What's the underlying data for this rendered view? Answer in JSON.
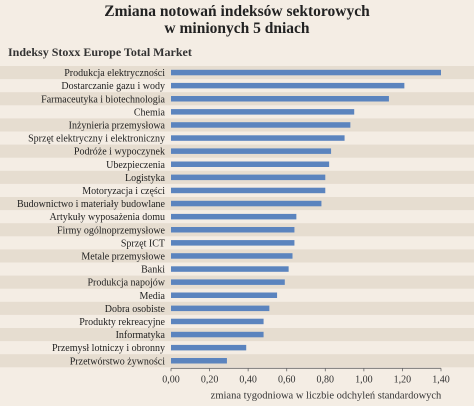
{
  "chart_data": {
    "type": "bar",
    "orientation": "horizontal",
    "title_lines": [
      "Zmiana notowań indeksów sektorowych",
      "w minionych 5 dniach"
    ],
    "subtitle": "Indeksy Stoxx Europe Total Market",
    "xlabel": "zmiana tygodniowa w liczbie odchyleń standardowych",
    "ylabel": "",
    "categories": [
      "Produkcja elektryczności",
      "Dostarczanie gazu i wody",
      "Farmaceutyka i biotechnologia",
      "Chemia",
      "Inżynieria przemysłowa",
      "Sprzęt elektryczny i elektroniczny",
      "Podróże i wypoczynek",
      "Ubezpieczenia",
      "Logistyka",
      "Motoryzacja i części",
      "Budownictwo i materiały budowlane",
      "Artykuły wyposażenia domu",
      "Firmy ogólnoprzemysłowe",
      "Sprzęt ICT",
      "Metale przemysłowe",
      "Banki",
      "Produkcja napojów",
      "Media",
      "Dobra osobiste",
      "Produkty rekreacyjne",
      "Informatyka",
      "Przemysł lotniczy i obronny",
      "Przetwórstwo żywności"
    ],
    "values": [
      1.4,
      1.21,
      1.13,
      0.95,
      0.93,
      0.9,
      0.83,
      0.82,
      0.8,
      0.8,
      0.78,
      0.65,
      0.64,
      0.64,
      0.63,
      0.61,
      0.59,
      0.55,
      0.51,
      0.48,
      0.48,
      0.39,
      0.29
    ],
    "xlim": [
      0,
      1.4
    ],
    "xticks": [
      "0,00",
      "0,20",
      "0,40",
      "0,60",
      "0,80",
      "1,00",
      "1,20",
      "1,40"
    ],
    "bar_color": "#5b84be",
    "stripe_color": "#e6ddd0",
    "background_color": "#f4ede4",
    "grid": false
  }
}
